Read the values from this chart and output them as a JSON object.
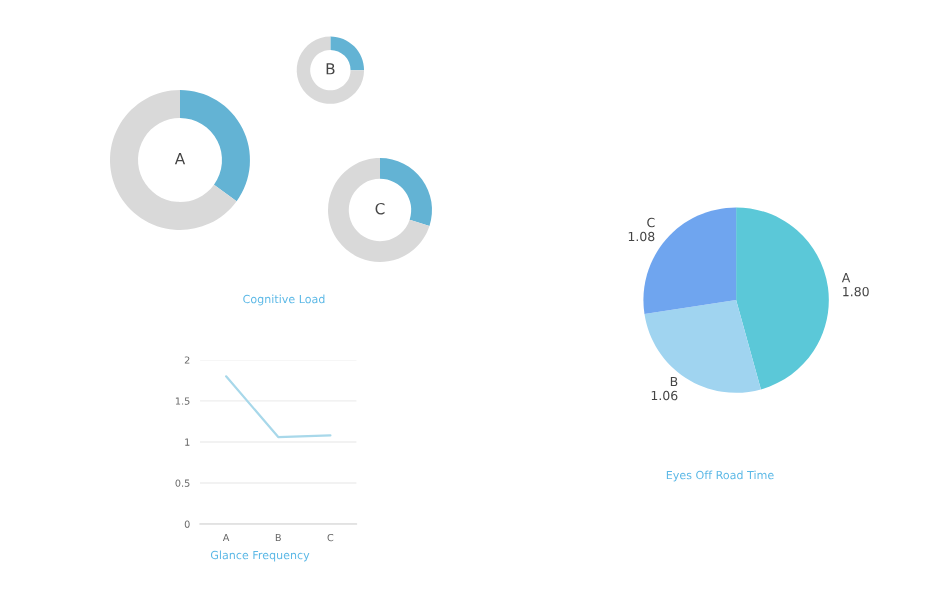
{
  "chart_data": [
    {
      "type": "donut",
      "annotations": [
        "A"
      ],
      "categories": [
        null,
        null
      ],
      "values": [
        35,
        65
      ],
      "colors": [
        "#63b3d4",
        "#d9d9d9"
      ]
    },
    {
      "type": "donut",
      "annotations": [
        "B"
      ],
      "categories": [
        null,
        null
      ],
      "values": [
        25,
        75
      ],
      "colors": [
        "#63b3d4",
        "#d9d9d9"
      ]
    },
    {
      "type": "donut",
      "annotations": [
        "C",
        "Cognitive Load"
      ],
      "categories": [
        null,
        null
      ],
      "values": [
        30,
        70
      ],
      "colors": [
        "#63b3d4",
        "#d9d9d9"
      ]
    },
    {
      "type": "line",
      "title": "Glance Frequency",
      "categories": [
        "A",
        "B",
        "C"
      ],
      "series": [
        {
          "color": "#a8d8ea",
          "values": [
            1.8,
            1.06,
            1.08
          ]
        }
      ],
      "ylim": [
        0,
        2
      ],
      "yticks": [
        0,
        0.5,
        1,
        1.5,
        2
      ],
      "grid": "y",
      "marker": "none"
    },
    {
      "type": "pie",
      "title": "Eyes Off Road Time",
      "categories": [
        "A",
        "B",
        "C"
      ],
      "values": [
        1.8,
        1.06,
        1.08
      ],
      "colors": [
        "#5bc8d8",
        "#a0d4f0",
        "#6fa5ef"
      ],
      "value_labels": [
        "1.80",
        "1.06",
        "1.08"
      ]
    }
  ]
}
